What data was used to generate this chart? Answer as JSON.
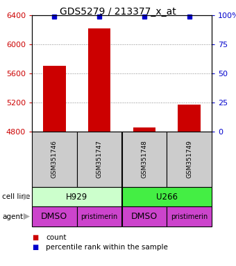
{
  "title": "GDS5279 / 213377_x_at",
  "samples": [
    "GSM351746",
    "GSM351747",
    "GSM351748",
    "GSM351749"
  ],
  "counts": [
    5700,
    6220,
    4860,
    5170
  ],
  "percentile_ranks": [
    99,
    99,
    99,
    99
  ],
  "ylim_left": [
    4800,
    6400
  ],
  "ylim_right": [
    0,
    100
  ],
  "yticks_left": [
    4800,
    5200,
    5600,
    6000,
    6400
  ],
  "yticks_right": [
    0,
    25,
    50,
    75,
    100
  ],
  "cell_lines": [
    [
      "H929",
      2
    ],
    [
      "U266",
      2
    ]
  ],
  "cell_line_colors": [
    "#ccffcc",
    "#44ee44"
  ],
  "agents": [
    "DMSO",
    "pristimerin",
    "DMSO",
    "pristimerin"
  ],
  "agent_color": "#cc44cc",
  "bar_color": "#cc0000",
  "percentile_color": "#0000cc",
  "bar_width": 0.5,
  "grid_color": "#888888",
  "label_color_left": "#cc0000",
  "label_color_right": "#0000cc",
  "gray_color": "#cccccc",
  "agent_font_sizes": [
    9,
    7,
    9,
    7
  ]
}
